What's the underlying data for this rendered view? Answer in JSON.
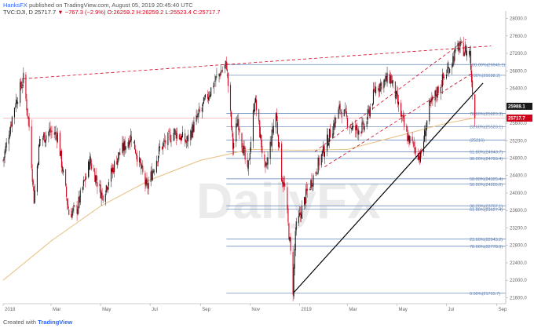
{
  "header": {
    "author": "HanksFX",
    "published": "published on TradingView.com, August 05, 2019 20:45:40 UTC",
    "symbol": "TVC:DJI, D",
    "last": "25717.7",
    "change": "▼ −767.3 (−2.9%)",
    "open": "O:26259.2",
    "high": "H:26259.2",
    "low": "L:25523.4",
    "close": "C:25717.7"
  },
  "footer": {
    "created_with": "Created with",
    "brand": "TradingView"
  },
  "watermark": "DailyFX",
  "colors": {
    "up": "#1a1a1a",
    "down": "#d0021b",
    "ma": "#e8c48a",
    "fib": "#5a7fb5",
    "trend": "#000000",
    "resist": "#d0021b"
  },
  "chart_data": {
    "type": "candlestick",
    "symbol": "TVC:DJI",
    "timeframe": "D",
    "ylim": [
      21500,
      28100
    ],
    "y_ticks": [
      21600,
      22000,
      22400,
      22800,
      23200,
      23600,
      24000,
      24400,
      24800,
      25200,
      25600,
      26000,
      26400,
      26800,
      27200,
      27600,
      28000
    ],
    "x_ticks": [
      "2018",
      "Mar",
      "May",
      "Jul",
      "Sep",
      "Nov",
      "2019",
      "Mar",
      "May",
      "Jul",
      "Sep"
    ],
    "price_path": [
      [
        "2018-01-01",
        24750
      ],
      [
        "2018-01-15",
        26000
      ],
      [
        "2018-01-26",
        26616
      ],
      [
        "2018-02-02",
        25520
      ],
      [
        "2018-02-08",
        23860
      ],
      [
        "2018-02-15",
        25200
      ],
      [
        "2018-02-27",
        25410
      ],
      [
        "2018-03-09",
        25330
      ],
      [
        "2018-03-23",
        23530
      ],
      [
        "2018-04-02",
        23640
      ],
      [
        "2018-04-18",
        24740
      ],
      [
        "2018-05-03",
        23930
      ],
      [
        "2018-05-22",
        24830
      ],
      [
        "2018-06-08",
        25320
      ],
      [
        "2018-06-27",
        24100
      ],
      [
        "2018-07-13",
        25020
      ],
      [
        "2018-07-31",
        25400
      ],
      [
        "2018-08-15",
        25170
      ],
      [
        "2018-09-03",
        25960
      ],
      [
        "2018-09-21",
        26650
      ],
      [
        "2018-10-03",
        26950
      ],
      [
        "2018-10-11",
        25050
      ],
      [
        "2018-10-17",
        25700
      ],
      [
        "2018-10-29",
        24440
      ],
      [
        "2018-11-07",
        26190
      ],
      [
        "2018-11-20",
        24450
      ],
      [
        "2018-11-30",
        25540
      ],
      [
        "2018-12-03",
        25830
      ],
      [
        "2018-12-10",
        24390
      ],
      [
        "2018-12-14",
        24100
      ],
      [
        "2018-12-20",
        22860
      ],
      [
        "2018-12-24",
        21790
      ],
      [
        "2018-12-27",
        23140
      ],
      [
        "2019-01-10",
        24000
      ],
      [
        "2019-01-31",
        24990
      ],
      [
        "2019-02-20",
        25950
      ],
      [
        "2019-03-08",
        25450
      ],
      [
        "2019-03-22",
        25500
      ],
      [
        "2019-04-05",
        26420
      ],
      [
        "2019-04-23",
        26650
      ],
      [
        "2019-05-13",
        25320
      ],
      [
        "2019-05-30",
        24815
      ],
      [
        "2019-06-10",
        25950
      ],
      [
        "2019-06-25",
        26550
      ],
      [
        "2019-07-05",
        26920
      ],
      [
        "2019-07-15",
        27350
      ],
      [
        "2019-07-24",
        27270
      ],
      [
        "2019-07-30",
        27200
      ],
      [
        "2019-08-01",
        26580
      ],
      [
        "2019-08-05",
        25718
      ]
    ],
    "series": [
      {
        "name": "",
        "kind": "moving-average",
        "color": "#e8c48a",
        "points": [
          [
            "2018-01-01",
            22000
          ],
          [
            "2018-03-01",
            22900
          ],
          [
            "2018-05-01",
            23700
          ],
          [
            "2018-07-01",
            24300
          ],
          [
            "2018-09-01",
            24750
          ],
          [
            "2018-11-01",
            25000
          ],
          [
            "2019-01-01",
            24980
          ],
          [
            "2019-03-01",
            25000
          ],
          [
            "2019-05-01",
            25300
          ],
          [
            "2019-07-01",
            25600
          ],
          [
            "2019-08-05",
            25720
          ]
        ]
      }
    ],
    "fib_levels": [
      {
        "pct": "100.00%",
        "value": "26945.1",
        "y": 26945.1
      },
      {
        "pct": "0.00%",
        "value": "26698.2",
        "y": 26698.2
      },
      {
        "pct": "78.60%",
        "value": "25823.3",
        "y": 25823.3
      },
      {
        "pct": "23.60%",
        "value": "25523.1",
        "y": 25523.1
      },
      {
        "pct": "",
        "value": "(25216)",
        "y": 25216
      },
      {
        "pct": "61.80%",
        "value": "24943.7",
        "y": 24943.7
      },
      {
        "pct": "38.20%",
        "value": "24793.4",
        "y": 24793.4
      },
      {
        "pct": "50.00%",
        "value": "24325.4",
        "y": 24325.4
      },
      {
        "pct": "50.00%",
        "value": "24205.0",
        "y": 24205.0
      },
      {
        "pct": "38.20%",
        "value": "23707.1",
        "y": 23707.1
      },
      {
        "pct": "61.80%",
        "value": "23627.4",
        "y": 23627.4
      },
      {
        "pct": "23.60%",
        "value": "22943.2",
        "y": 22943.2
      },
      {
        "pct": "78.60%",
        "value": "22778.9",
        "y": 22778.9
      },
      {
        "pct": "0.00%",
        "value": "21703.7",
        "y": 21703.7
      }
    ],
    "price_tags": [
      {
        "label": "25988.1",
        "y": 25988.1,
        "color": "#1a1a1a"
      },
      {
        "label": "25717.7",
        "y": 25717.7,
        "color": "#d0021b"
      }
    ]
  }
}
